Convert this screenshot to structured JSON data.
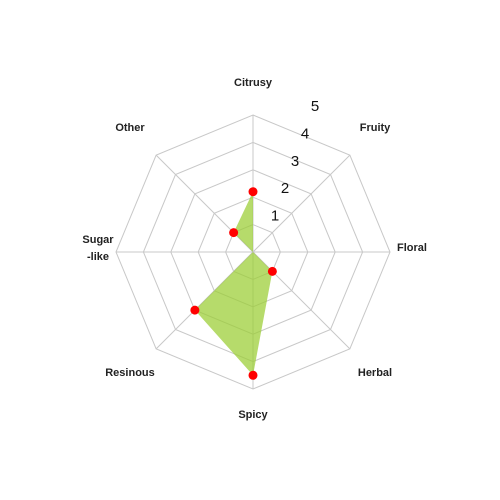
{
  "chart_data": {
    "type": "radar",
    "categories": [
      "Citrusy",
      "Fruity",
      "Floral",
      "Herbal",
      "Spicy",
      "Resinous",
      "Sugar\n-like",
      "Other"
    ],
    "series": [
      {
        "values": [
          2.2,
          0,
          0,
          1,
          4.5,
          3,
          0,
          1
        ],
        "fill": "#9acd32",
        "marker": "#ff0000"
      }
    ],
    "rlim": [
      0,
      5
    ],
    "ticks": [
      "1",
      "2",
      "3",
      "4",
      "5"
    ],
    "grid": true,
    "colors": {
      "grid": "#c8c8c8",
      "fill": "#9acd32",
      "marker": "#ff0000"
    }
  }
}
